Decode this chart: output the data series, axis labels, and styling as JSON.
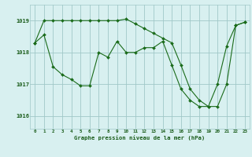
{
  "title": "Graphe pression niveau de la mer (hPa)",
  "bg_color": "#d8f0f0",
  "line_color": "#1a6b1a",
  "grid_color": "#a0c8c8",
  "text_color": "#1a5c1a",
  "series1_x": [
    0,
    1,
    2,
    3,
    4,
    5,
    6,
    7,
    8,
    9,
    10,
    11,
    12,
    13,
    14,
    15,
    16,
    17,
    18,
    19,
    20,
    21,
    22,
    23
  ],
  "series1_y": [
    1018.3,
    1019.0,
    1019.0,
    1019.0,
    1019.0,
    1019.0,
    1019.0,
    1019.0,
    1019.0,
    1019.0,
    1019.05,
    1018.9,
    1018.75,
    1018.6,
    1018.45,
    1018.3,
    1017.6,
    1016.85,
    1016.5,
    1016.3,
    1016.3,
    1017.0,
    1018.85,
    1018.95
  ],
  "series2_x": [
    0,
    1,
    2,
    3,
    4,
    5,
    6,
    7,
    8,
    9,
    10,
    11,
    12,
    13,
    14,
    15,
    16,
    17,
    18,
    19,
    20,
    21,
    22,
    23
  ],
  "series2_y": [
    1018.3,
    1018.55,
    1017.55,
    1017.3,
    1017.15,
    1016.95,
    1016.95,
    1018.0,
    1017.85,
    1018.35,
    1018.0,
    1018.0,
    1018.15,
    1018.15,
    1018.35,
    1017.6,
    1016.85,
    1016.5,
    1016.3,
    1016.3,
    1017.0,
    1018.2,
    1018.85,
    1018.95
  ],
  "xlim": [
    -0.5,
    23.5
  ],
  "ylim": [
    1015.6,
    1019.5
  ],
  "yticks": [
    1016,
    1017,
    1018,
    1019
  ]
}
